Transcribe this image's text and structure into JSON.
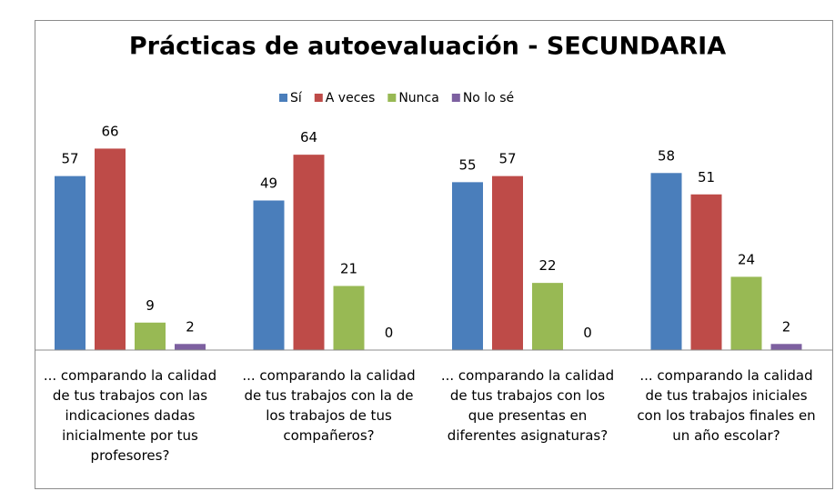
{
  "chart_data": {
    "type": "bar",
    "title": "Prácticas de autoevaluación - SECUNDARIA",
    "categories": [
      "... comparando la calidad de tus trabajos con las indicaciones dadas  inicialmente por tus profesores?",
      "... comparando la calidad de tus trabajos con la de los trabajos de tus compañeros?",
      "... comparando la calidad de tus trabajos con los que presentas en diferentes asignaturas?",
      "... comparando la calidad de tus trabajos iniciales con los trabajos finales en un año escolar?"
    ],
    "series": [
      {
        "name": "Sí",
        "color": "#4a7ebb",
        "values": [
          57,
          49,
          55,
          58
        ]
      },
      {
        "name": "A veces",
        "color": "#be4b48",
        "values": [
          66,
          64,
          57,
          51
        ]
      },
      {
        "name": "Nunca",
        "color": "#98b954",
        "values": [
          9,
          21,
          22,
          24
        ]
      },
      {
        "name": "No lo sé",
        "color": "#7d60a0",
        "values": [
          2,
          0,
          0,
          2
        ]
      }
    ],
    "ylim": [
      0,
      70
    ],
    "legend": "top"
  }
}
